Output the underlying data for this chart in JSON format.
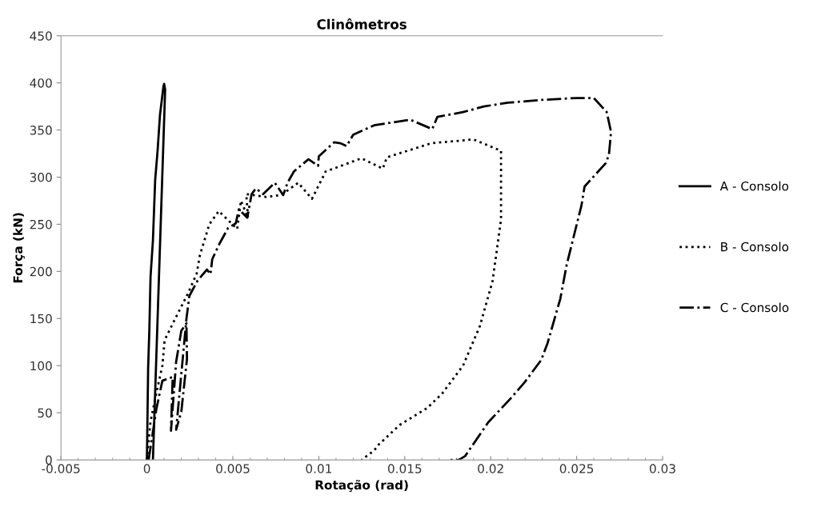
{
  "chart_data": {
    "type": "line",
    "title": "Clinômetros",
    "xlabel": "Rotação (rad)",
    "ylabel": "Força (kN)",
    "xlim": [
      -0.005,
      0.03
    ],
    "xticks": [
      -0.005,
      0,
      0.005,
      0.01,
      0.015,
      0.02,
      0.025,
      0.03
    ],
    "ylim": [
      0,
      450
    ],
    "yticks": [
      0,
      50,
      100,
      150,
      200,
      250,
      300,
      350,
      400,
      450
    ],
    "grid": false,
    "legend": "right",
    "marker": "none",
    "series": [
      {
        "name": "A - Consolo",
        "color": "#000000",
        "line_style": "solid",
        "x": [
          0,
          7e-05,
          0.00014,
          0.00021,
          0.00035,
          0.00048,
          0.00062,
          0.00076,
          0.00096,
          0.001,
          0.00106,
          0.00035
        ],
        "values": [
          0,
          97,
          137,
          194,
          233,
          297,
          328,
          366,
          396,
          399,
          393,
          0
        ]
      },
      {
        "name": "B - Consolo",
        "color": "#000000",
        "line_style": "dotted",
        "x": [
          0,
          0.00021,
          0.00062,
          0.0009,
          0.00103,
          0.00165,
          0.0024,
          0.0029,
          0.00308,
          0.00363,
          0.00418,
          0.00525,
          0.00547,
          0.00588,
          0.00578,
          0.00695,
          0.00781,
          0.0088,
          0.0096,
          0.0104,
          0.01248,
          0.01372,
          0.01396,
          0.01654,
          0.019,
          0.0206,
          0.0206,
          0.0203,
          0.0201,
          0.01937,
          0.01839,
          0.01716,
          0.0163,
          0.0147,
          0.01347,
          0.01322,
          0.01249
        ],
        "values": [
          0,
          41,
          77,
          100,
          127,
          150,
          177,
          198,
          217,
          250,
          264,
          245,
          275,
          257,
          282,
          279,
          281,
          294,
          277,
          306,
          320,
          309,
          321,
          336,
          340,
          328,
          255,
          215,
          189,
          142,
          100,
          70,
          55,
          37,
          16,
          10,
          0
        ]
      },
      {
        "name": "C - Consolo",
        "color": "#000000",
        "line_style": "dashdot",
        "x": [
          0.0001,
          0.00055,
          0.0009,
          0.0015,
          0.0014,
          0.0017,
          0.002,
          0.0023,
          0.00233,
          0.002,
          0.0017,
          0.0023,
          0.00247,
          0.00294,
          0.00349,
          0.0037,
          0.0038,
          0.00424,
          0.00472,
          0.00517,
          0.00535,
          0.00584,
          0.00609,
          0.00634,
          0.00676,
          0.00744,
          0.00793,
          0.00818,
          0.00855,
          0.0094,
          0.00996,
          0.01,
          0.01089,
          0.01125,
          0.01162,
          0.012,
          0.01322,
          0.01531,
          0.0166,
          0.0169,
          0.01839,
          0.0196,
          0.021,
          0.023,
          0.025,
          0.026,
          0.02675,
          0.027,
          0.02688,
          0.0267,
          0.02546,
          0.02528,
          0.02442,
          0.02405,
          0.02331,
          0.02294,
          0.02196,
          0.0211,
          0.01986,
          0.01851,
          0.01814,
          0.0176
        ],
        "values": [
          0,
          54,
          84,
          88,
          31,
          104,
          137,
          145,
          107,
          51,
          32,
          150,
          174,
          190,
          202,
          197,
          213,
          230,
          246,
          251,
          266,
          257,
          282,
          288,
          282,
          294,
          281,
          294,
          306,
          319,
          312,
          322,
          337,
          336,
          333,
          345,
          355,
          361,
          351,
          364,
          369,
          375,
          379,
          382,
          384,
          384,
          369,
          348,
          324,
          315,
          290,
          270,
          207,
          171,
          124,
          106,
          82,
          64,
          40,
          4,
          0,
          0
        ]
      }
    ]
  }
}
